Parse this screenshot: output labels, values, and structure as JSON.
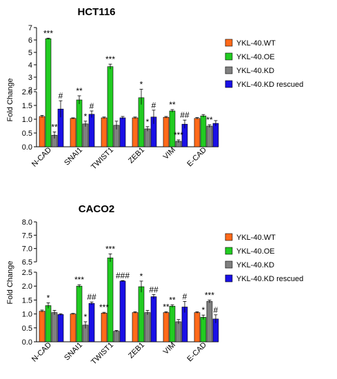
{
  "chart_data": [
    {
      "type": "bar",
      "title": "HCT116",
      "ylabel": "Fold Change",
      "xlabel": "",
      "axis_break": {
        "lower": [
          0,
          2.0
        ],
        "upper": [
          2.0,
          7
        ]
      },
      "yticks": [
        "0.0",
        "0.5",
        "1.0",
        "1.5",
        "2.0",
        "2",
        "3",
        "4",
        "5",
        "6",
        "7"
      ],
      "categories": [
        "N-CAD",
        "SNAI1",
        "TWIST1",
        "ZEB1",
        "VIM",
        "E-CAD"
      ],
      "series": [
        {
          "name": "YKL-40.WT",
          "color": "#ff6a1a",
          "values": [
            1.1,
            1.03,
            1.05,
            1.05,
            1.07,
            1.03
          ],
          "errors": [
            0.04,
            0.02,
            0.03,
            0.03,
            0.03,
            0.03
          ]
        },
        {
          "name": "YKL-40.OE",
          "color": "#22cc22",
          "values": [
            6.1,
            1.7,
            3.85,
            1.78,
            1.3,
            1.12
          ],
          "errors": [
            0.05,
            0.15,
            0.2,
            0.25,
            0.05,
            0.05
          ]
        },
        {
          "name": "YKL-40.KD",
          "color": "#808080",
          "values": [
            0.42,
            0.83,
            0.78,
            0.65,
            0.2,
            0.75
          ],
          "errors": [
            0.12,
            0.1,
            0.15,
            0.08,
            0.05,
            0.05
          ]
        },
        {
          "name": "YKL-40.KD rescued",
          "color": "#1a10e6",
          "values": [
            1.37,
            1.18,
            1.05,
            1.08,
            0.82,
            0.85
          ],
          "errors": [
            0.3,
            0.12,
            0.05,
            0.25,
            0.15,
            0.1
          ]
        }
      ],
      "annotations": [
        {
          "category": 0,
          "series": 1,
          "text": "***"
        },
        {
          "category": 0,
          "series": 2,
          "text": "**"
        },
        {
          "category": 0,
          "series": 3,
          "text": "#"
        },
        {
          "category": 1,
          "series": 1,
          "text": "**"
        },
        {
          "category": 1,
          "series": 2,
          "text": "*"
        },
        {
          "category": 1,
          "series": 3,
          "text": "#"
        },
        {
          "category": 2,
          "series": 1,
          "text": "***"
        },
        {
          "category": 3,
          "series": 1,
          "text": "*"
        },
        {
          "category": 3,
          "series": 2,
          "text": "*"
        },
        {
          "category": 3,
          "series": 3,
          "text": "#"
        },
        {
          "category": 4,
          "series": 1,
          "text": "**"
        },
        {
          "category": 4,
          "series": 2,
          "text": "***"
        },
        {
          "category": 4,
          "series": 3,
          "text": "##"
        },
        {
          "category": 5,
          "series": 2,
          "text": "**"
        }
      ]
    },
    {
      "type": "bar",
      "title": "CACO2",
      "ylabel": "Fold Change",
      "xlabel": "",
      "axis_break": {
        "lower": [
          0,
          2.5
        ],
        "upper": [
          6.5,
          8.0
        ]
      },
      "yticks": [
        "0.0",
        "0.5",
        "1.0",
        "1.5",
        "2.0",
        "2.5",
        "6.5",
        "7.0",
        "7.5",
        "8.0"
      ],
      "categories": [
        "N-CAD",
        "SNAI1",
        "TWIST1",
        "ZEB1",
        "VIM",
        "E-CAD"
      ],
      "series": [
        {
          "name": "YKL-40.WT",
          "color": "#ff6a1a",
          "values": [
            1.1,
            1.0,
            1.03,
            1.05,
            1.05,
            1.05
          ],
          "errors": [
            0.04,
            0.02,
            0.03,
            0.03,
            0.03,
            0.03
          ]
        },
        {
          "name": "YKL-40.OE",
          "color": "#22cc22",
          "values": [
            1.3,
            2.0,
            6.65,
            1.98,
            1.28,
            0.88
          ],
          "errors": [
            0.1,
            0.05,
            0.15,
            0.2,
            0.05,
            0.08
          ]
        },
        {
          "name": "YKL-40.KD",
          "color": "#808080",
          "values": [
            1.05,
            0.6,
            0.38,
            1.05,
            0.72,
            1.45
          ],
          "errors": [
            0.08,
            0.12,
            0.03,
            0.08,
            0.08,
            0.05
          ]
        },
        {
          "name": "YKL-40.KD rescued",
          "color": "#1a10e6",
          "values": [
            0.98,
            1.38,
            2.18,
            1.62,
            1.25,
            0.82
          ],
          "errors": [
            0.03,
            0.05,
            0.02,
            0.08,
            0.2,
            0.15
          ]
        }
      ],
      "annotations": [
        {
          "category": 0,
          "series": 1,
          "text": "*"
        },
        {
          "category": 1,
          "series": 1,
          "text": "***"
        },
        {
          "category": 1,
          "series": 2,
          "text": "*"
        },
        {
          "category": 1,
          "series": 3,
          "text": "##"
        },
        {
          "category": 2,
          "series": 0,
          "text": "***"
        },
        {
          "category": 2,
          "series": 1,
          "text": "***"
        },
        {
          "category": 2,
          "series": 3,
          "text": "###"
        },
        {
          "category": 3,
          "series": 1,
          "text": "*"
        },
        {
          "category": 3,
          "series": 3,
          "text": "##"
        },
        {
          "category": 4,
          "series": 0,
          "text": "**"
        },
        {
          "category": 4,
          "series": 1,
          "text": "**"
        },
        {
          "category": 4,
          "series": 3,
          "text": "#"
        },
        {
          "category": 5,
          "series": 1,
          "text": "*"
        },
        {
          "category": 5,
          "series": 2,
          "text": "***"
        },
        {
          "category": 5,
          "series": 3,
          "text": "#"
        }
      ]
    }
  ]
}
